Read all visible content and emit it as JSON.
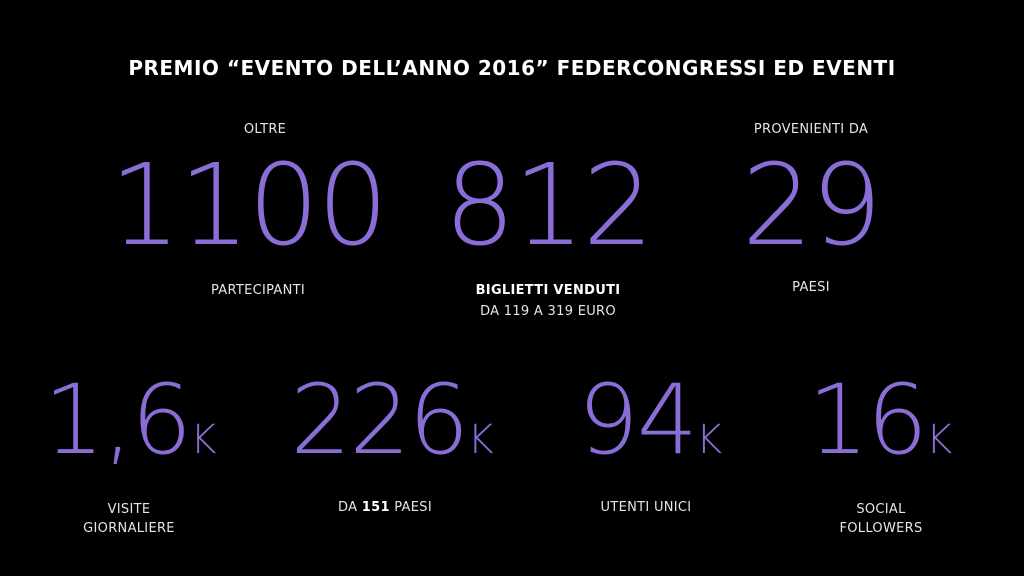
{
  "title": "PREMIO “EVENTO DELL’ANNO 2016” FEDERCONGRESSI ED EVENTI",
  "top_stats": [
    {
      "pre": "OLTRE",
      "number": "1100",
      "label": "PARTECIPANTI"
    },
    {
      "number": "812",
      "label": "BIGLIETTI VENDUTI",
      "sub": "DA 119 A 319 EURO"
    },
    {
      "pre": "PROVENIENTI DA",
      "number": "29",
      "label": "PAESI"
    }
  ],
  "bottom_stats": [
    {
      "number": "1,6",
      "unit": "K",
      "label": "VISITE GIORNALIERE"
    },
    {
      "number": "226",
      "unit": "K",
      "label_prefix": "DA",
      "label_bold": "151",
      "label_suffix": "PAESI"
    },
    {
      "number": "94",
      "unit": "K",
      "label": "UTENTI UNICI"
    },
    {
      "number": "16",
      "unit": "K",
      "label": "SOCIAL FOLLOWERS"
    }
  ]
}
